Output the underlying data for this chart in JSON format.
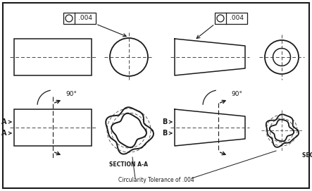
{
  "bg_color": "#ffffff",
  "line_color": "#1a1a1a",
  "dash_color": "#444444",
  "title": "Circularity Tolerance of .004",
  "section_aa": "SECTION A-A",
  "section_bb": "SECTION B-B",
  "fig_width": 4.43,
  "fig_height": 2.71,
  "dpi": 100
}
